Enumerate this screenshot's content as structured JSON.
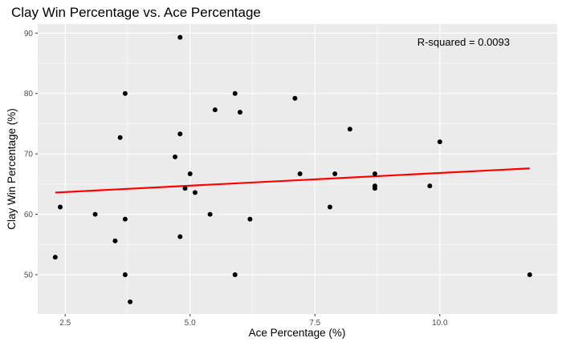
{
  "chart_data": {
    "type": "scatter",
    "title": "Clay Win Percentage vs. Ace Percentage",
    "xlabel": "Ace Percentage (%)",
    "ylabel": "Clay Win Percentage (%)",
    "xlim": [
      1.95,
      12.35
    ],
    "ylim": [
      43.5,
      91.5
    ],
    "x_ticks": [
      2.5,
      5.0,
      7.5,
      10.0
    ],
    "x_tick_labels": [
      "2.5",
      "5.0",
      "7.5",
      "10.0"
    ],
    "y_ticks": [
      50,
      60,
      70,
      80,
      90
    ],
    "y_tick_labels": [
      "50",
      "60",
      "70",
      "80",
      "90"
    ],
    "grid": true,
    "annotation": "R-squared = 0.0093",
    "points": [
      {
        "x": 2.3,
        "y": 52.9
      },
      {
        "x": 2.4,
        "y": 61.2
      },
      {
        "x": 3.1,
        "y": 60.0
      },
      {
        "x": 3.5,
        "y": 55.6
      },
      {
        "x": 3.6,
        "y": 72.7
      },
      {
        "x": 3.7,
        "y": 80.0
      },
      {
        "x": 3.7,
        "y": 59.2
      },
      {
        "x": 3.7,
        "y": 50.0
      },
      {
        "x": 3.8,
        "y": 45.5
      },
      {
        "x": 4.7,
        "y": 69.5
      },
      {
        "x": 4.8,
        "y": 89.3
      },
      {
        "x": 4.8,
        "y": 73.3
      },
      {
        "x": 4.8,
        "y": 56.3
      },
      {
        "x": 4.9,
        "y": 64.3
      },
      {
        "x": 5.0,
        "y": 66.7
      },
      {
        "x": 5.1,
        "y": 63.6
      },
      {
        "x": 5.4,
        "y": 60.0
      },
      {
        "x": 5.5,
        "y": 77.3
      },
      {
        "x": 5.9,
        "y": 80.0
      },
      {
        "x": 5.9,
        "y": 50.0
      },
      {
        "x": 6.0,
        "y": 76.9
      },
      {
        "x": 6.2,
        "y": 59.2
      },
      {
        "x": 7.1,
        "y": 79.2
      },
      {
        "x": 7.2,
        "y": 66.7
      },
      {
        "x": 7.8,
        "y": 61.2
      },
      {
        "x": 7.9,
        "y": 66.7
      },
      {
        "x": 8.2,
        "y": 74.1
      },
      {
        "x": 8.7,
        "y": 66.7
      },
      {
        "x": 8.7,
        "y": 64.7
      },
      {
        "x": 8.7,
        "y": 64.3
      },
      {
        "x": 9.8,
        "y": 64.7
      },
      {
        "x": 10.0,
        "y": 72.0
      },
      {
        "x": 11.8,
        "y": 50.0
      }
    ],
    "trendline": {
      "x": [
        2.3,
        11.8
      ],
      "y": [
        63.6,
        67.6
      ]
    },
    "colors": {
      "panel": "#ebebeb",
      "grid_major": "#ffffff",
      "point": "#000000",
      "trendline": "#ff0000"
    }
  }
}
